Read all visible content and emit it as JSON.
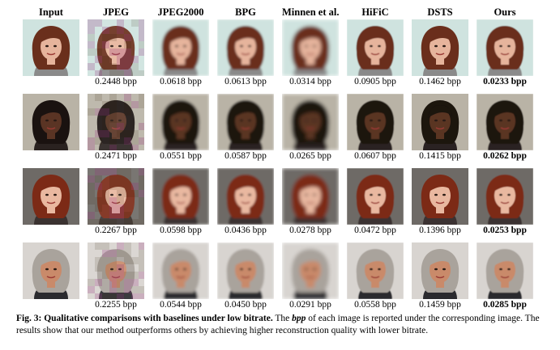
{
  "figure": {
    "columns": [
      "Input",
      "JPEG",
      "JPEG2000",
      "BPG",
      "Minnen et al.",
      "HiFiC",
      "DSTS",
      "Ours"
    ],
    "rows": [
      {
        "subject": "face-1",
        "bpp": [
          "",
          "0.2448 bpp",
          "0.0618 bpp",
          "0.0613 bpp",
          "0.0314 bpp",
          "0.0905 bpp",
          "0.1462 bpp",
          "0.0233 bpp"
        ]
      },
      {
        "subject": "face-2",
        "bpp": [
          "",
          "0.2471 bpp",
          "0.0551 bpp",
          "0.0587 bpp",
          "0.0265 bpp",
          "0.0607 bpp",
          "0.1415 bpp",
          "0.0262 bpp"
        ]
      },
      {
        "subject": "face-3",
        "bpp": [
          "",
          "0.2267 bpp",
          "0.0598 bpp",
          "0.0436 bpp",
          "0.0278 bpp",
          "0.0472 bpp",
          "0.1396 bpp",
          "0.0253 bpp"
        ]
      },
      {
        "subject": "face-4",
        "bpp": [
          "",
          "0.2255 bpp",
          "0.0544 bpp",
          "0.0450 bpp",
          "0.0291 bpp",
          "0.0558 bpp",
          "0.1459 bpp",
          "0.0285 bpp"
        ]
      }
    ],
    "colors": {
      "face-1": {
        "bg": "#cfe3df",
        "hair": "#6a2f1c",
        "skin": "#e6b49c",
        "cloth": "#8a8a8a"
      },
      "face-2": {
        "bg": "#b9b3a6",
        "hair": "#1a1210",
        "skin": "#5a3424",
        "cloth": "#2a2220"
      },
      "face-3": {
        "bg": "#6e6a66",
        "hair": "#7c2a16",
        "skin": "#e9b8a0",
        "cloth": "#3a3230"
      },
      "face-4": {
        "bg": "#d8d4d0",
        "hair": "#a9a39c",
        "skin": "#c98a6a",
        "cloth": "#2a2a2e"
      }
    }
  },
  "caption": {
    "label": "Fig. 3",
    "title": "Qualitative comparisons with baselines under low bitrate.",
    "part1": "The",
    "term": "bpp",
    "part2": "of each image is reported under the corresponding image. The results show that our method outperforms others by achieving higher reconstruction quality with lower bitrate."
  }
}
